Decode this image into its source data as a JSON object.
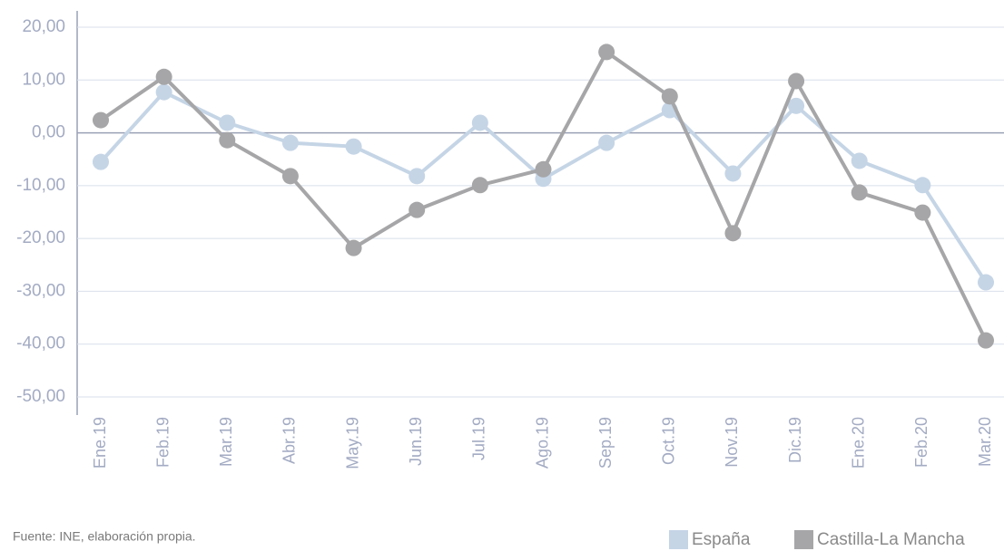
{
  "chart_data": {
    "type": "line",
    "categories": [
      "Ene.19",
      "Feb.19",
      "Mar.19",
      "Abr.19",
      "May.19",
      "Jun.19",
      "Jul.19",
      "Ago.19",
      "Sep.19",
      "Oct.19",
      "Nov.19",
      "Dic.19",
      "Ene.20",
      "Feb.20",
      "Mar.20"
    ],
    "series": [
      {
        "name": "España",
        "color": "#c5d5e6",
        "values": [
          -5.5,
          7.7,
          1.9,
          -1.9,
          -2.6,
          -8.2,
          1.9,
          -8.7,
          -1.9,
          4.3,
          -7.7,
          5.1,
          -5.3,
          -9.9,
          -28.3
        ]
      },
      {
        "name": "Castilla-La Mancha",
        "color": "#a6a6a8",
        "values": [
          2.4,
          10.6,
          -1.4,
          -8.2,
          -21.8,
          -14.6,
          -9.9,
          -6.9,
          15.3,
          6.9,
          -19.0,
          9.8,
          -11.3,
          -15.1,
          -39.3
        ]
      }
    ],
    "ylim": [
      -50,
      20
    ],
    "yticks": [
      {
        "value": -50,
        "label": "-50,00"
      },
      {
        "value": -40,
        "label": "-40,00"
      },
      {
        "value": -30,
        "label": "-30,00"
      },
      {
        "value": -20,
        "label": "-20,00"
      },
      {
        "value": -10,
        "label": "-10,00"
      },
      {
        "value": 0,
        "label": "0,00"
      },
      {
        "value": 10,
        "label": "10,00"
      },
      {
        "value": 20,
        "label": "20,00"
      }
    ],
    "grid": true,
    "note": "Fuente: INE, elaboración propia."
  }
}
